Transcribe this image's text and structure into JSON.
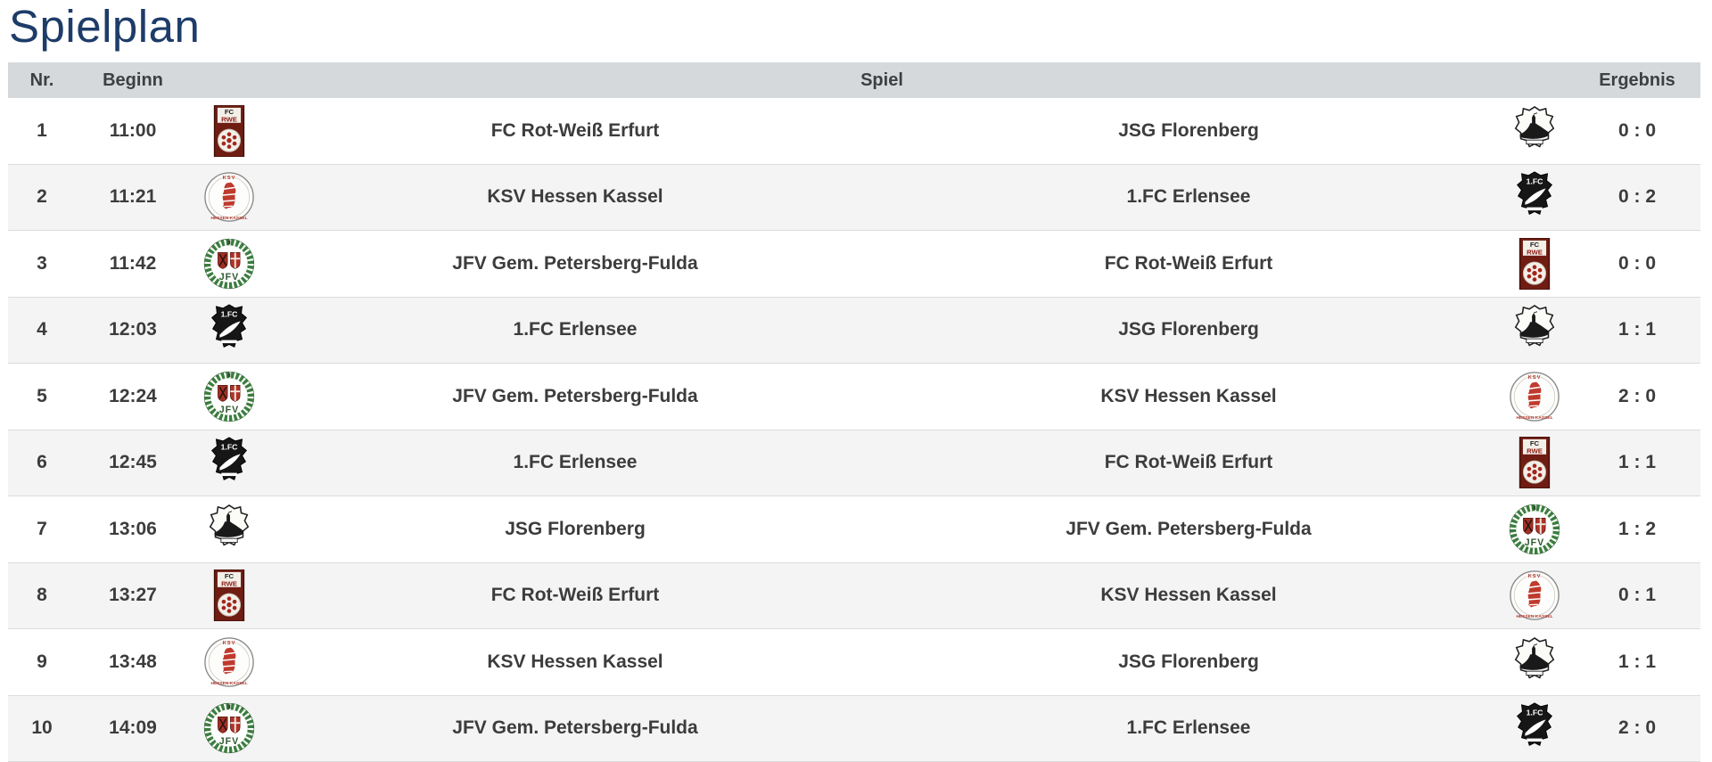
{
  "page": {
    "title": "Spielplan"
  },
  "colors": {
    "title": "#1e3c69",
    "header_bg": "#d5d9dc",
    "row_alt_bg": "#f4f4f5",
    "text": "#3c3c3c",
    "divider": "#dcdcdc"
  },
  "table": {
    "headers": {
      "nr": "Nr.",
      "beginn": "Beginn",
      "spiel": "Spiel",
      "ergebnis": "Ergebnis"
    },
    "rows": [
      {
        "nr": "1",
        "time": "11:00",
        "home": "FC Rot-Weiß Erfurt",
        "home_logo": "rwe",
        "away": "JSG Florenberg",
        "away_logo": "florenberg",
        "result": "0 : 0"
      },
      {
        "nr": "2",
        "time": "11:21",
        "home": "KSV Hessen Kassel",
        "home_logo": "ksv",
        "away": "1.FC Erlensee",
        "away_logo": "erlensee",
        "result": "0 : 2"
      },
      {
        "nr": "3",
        "time": "11:42",
        "home": "JFV Gem. Petersberg-Fulda",
        "home_logo": "jfv",
        "away": "FC Rot-Weiß Erfurt",
        "away_logo": "rwe",
        "result": "0 : 0"
      },
      {
        "nr": "4",
        "time": "12:03",
        "home": "1.FC Erlensee",
        "home_logo": "erlensee",
        "away": "JSG Florenberg",
        "away_logo": "florenberg",
        "result": "1 : 1"
      },
      {
        "nr": "5",
        "time": "12:24",
        "home": "JFV Gem. Petersberg-Fulda",
        "home_logo": "jfv",
        "away": "KSV Hessen Kassel",
        "away_logo": "ksv",
        "result": "2 : 0"
      },
      {
        "nr": "6",
        "time": "12:45",
        "home": "1.FC Erlensee",
        "home_logo": "erlensee",
        "away": "FC Rot-Weiß Erfurt",
        "away_logo": "rwe",
        "result": "1 : 1"
      },
      {
        "nr": "7",
        "time": "13:06",
        "home": "JSG Florenberg",
        "home_logo": "florenberg",
        "away": "JFV Gem. Petersberg-Fulda",
        "away_logo": "jfv",
        "result": "1 : 2"
      },
      {
        "nr": "8",
        "time": "13:27",
        "home": "FC Rot-Weiß Erfurt",
        "home_logo": "rwe",
        "away": "KSV Hessen Kassel",
        "away_logo": "ksv",
        "result": "0 : 1"
      },
      {
        "nr": "9",
        "time": "13:48",
        "home": "KSV Hessen Kassel",
        "home_logo": "ksv",
        "away": "JSG Florenberg",
        "away_logo": "florenberg",
        "result": "1 : 1"
      },
      {
        "nr": "10",
        "time": "14:09",
        "home": "JFV Gem. Petersberg-Fulda",
        "home_logo": "jfv",
        "away": "1.FC Erlensee",
        "away_logo": "erlensee",
        "result": "2 : 0"
      }
    ]
  },
  "logos": {
    "rwe": {
      "icon_name": "fc-rot-weiss-erfurt-badge-icon",
      "line1": "FC",
      "line2": "RWE"
    },
    "ksv": {
      "icon_name": "ksv-hessen-kassel-badge-icon",
      "top": "KSV",
      "bottom": "HESSEN-KASSEL"
    },
    "jfv": {
      "icon_name": "jfv-petersberg-fulda-badge-icon",
      "text": "JFV"
    },
    "erlensee": {
      "icon_name": "fc-erlensee-badge-icon",
      "text": "1.FC"
    },
    "florenberg": {
      "icon_name": "jsg-florenberg-badge-icon"
    }
  }
}
